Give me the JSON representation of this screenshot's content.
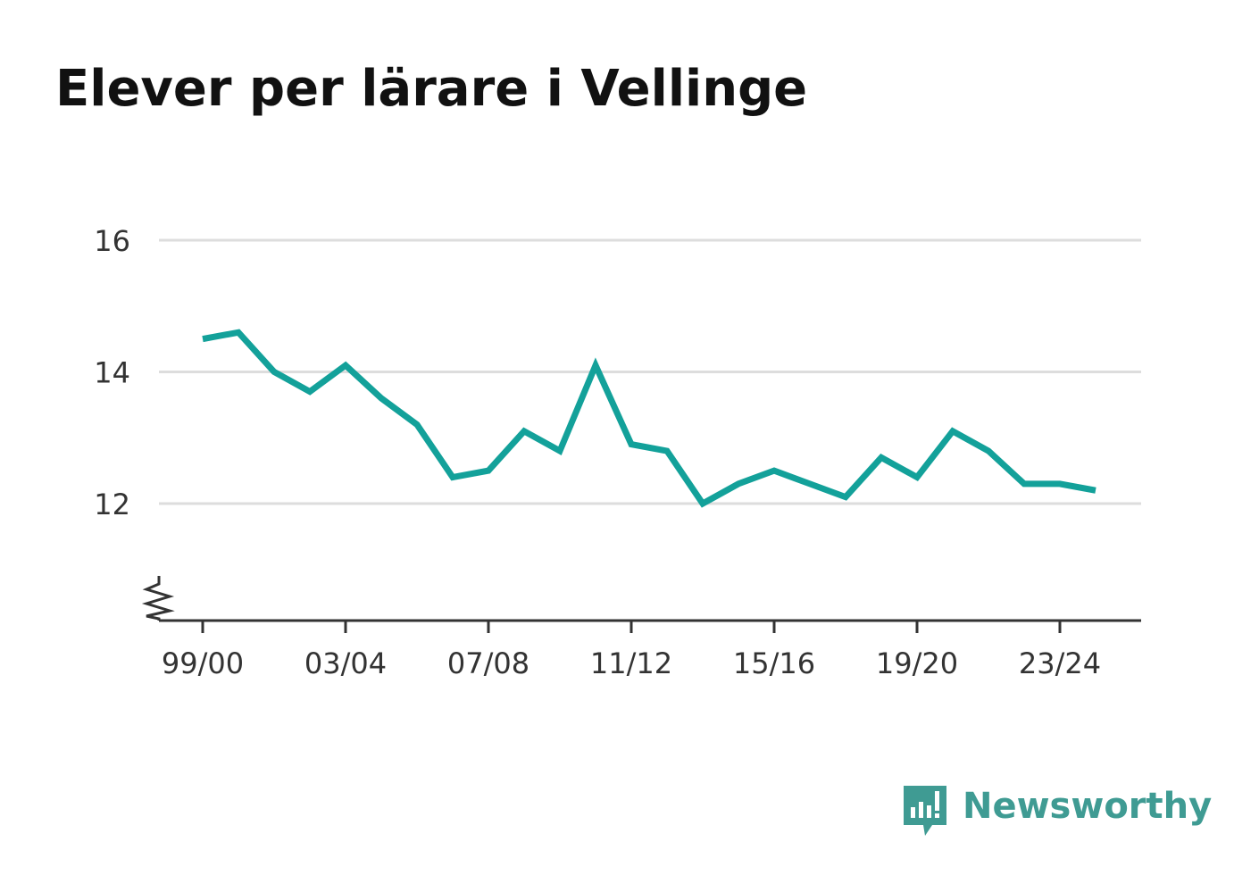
{
  "title": "Elever per lärare i Vellinge",
  "brand": {
    "name": "Newsworthy",
    "icon": "newsworthy-logo-icon",
    "color": "#3f9b93"
  },
  "chart_data": {
    "type": "line",
    "title": "Elever per lärare i Vellinge",
    "xlabel": "",
    "ylabel": "",
    "x": [
      "99/00",
      "00/01",
      "01/02",
      "02/03",
      "03/04",
      "04/05",
      "05/06",
      "06/07",
      "07/08",
      "08/09",
      "09/10",
      "10/11",
      "11/12",
      "12/13",
      "13/14",
      "14/15",
      "15/16",
      "16/17",
      "17/18",
      "18/19",
      "19/20",
      "20/21",
      "21/22",
      "22/23",
      "23/24",
      "24/25"
    ],
    "x_tick_labels": [
      "99/00",
      "03/04",
      "07/08",
      "11/12",
      "15/16",
      "19/20",
      "23/24"
    ],
    "series": [
      {
        "color": "#13a19a",
        "values": [
          14.5,
          14.6,
          14.0,
          13.7,
          14.1,
          13.6,
          13.2,
          12.4,
          12.5,
          13.1,
          12.8,
          14.1,
          12.9,
          12.8,
          12.0,
          12.3,
          12.5,
          12.3,
          12.1,
          12.7,
          12.4,
          13.1,
          12.8,
          12.3,
          12.3,
          12.2
        ]
      }
    ],
    "y_ticks": [
      12,
      14,
      16
    ],
    "ylim": [
      10.3,
      16
    ],
    "y_axis_break": true,
    "grid": true,
    "legend": "none"
  }
}
